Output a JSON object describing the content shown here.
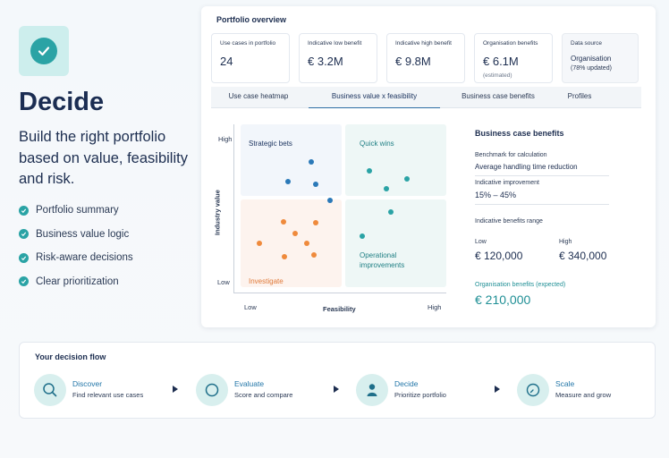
{
  "intro": {
    "title": "Decide",
    "subtitle": "Build the right portfolio based on value, feasibility and risk.",
    "features": [
      "Portfolio summary",
      "Business value logic",
      "Risk-aware decisions",
      "Clear prioritization"
    ],
    "accent": "#2aa3a5"
  },
  "panel": {
    "title": "Portfolio overview",
    "kpis": [
      {
        "label": "Use cases in portfolio",
        "value": "24"
      },
      {
        "label": "Indicative low benefit",
        "value": "€ 3.2M"
      },
      {
        "label": "Indicative high benefit",
        "value": "€ 9.8M"
      },
      {
        "label": "Organisation benefits",
        "value": "€ 6.1M",
        "note": "(estimated)"
      },
      {
        "label": "Data source",
        "value": "Organisation",
        "note": "(78% updated)"
      }
    ],
    "tabs": [
      "Use case heatmap",
      "Business value x feasibility",
      "Business case benefits",
      "Profiles"
    ],
    "active_tab": "Business value x feasibility"
  },
  "matrix": {
    "y_title": "Industry value",
    "y_high": "High",
    "y_low": "Low",
    "x_title": "Feasibility",
    "x_low": "Low",
    "x_high": "High",
    "quadrants": {
      "top_left": "Strategic bets",
      "top_right": "Quick wins",
      "bottom_left": "Investigate",
      "bottom_right": "Operational improvements"
    },
    "colors": {
      "blue": "#2b79b8",
      "teal": "#2aa3a5",
      "orange": "#ef8a3c",
      "investigate": "#e07a3a"
    }
  },
  "benefits": {
    "title": "Business case benefits",
    "benchmark_label": "Benchmark for calculation",
    "benchmark_value": "Average handling time reduction",
    "improvement_label": "Indicative improvement",
    "improvement_value": "15% – 45%",
    "range_label": "Indicative benefits range",
    "low_label": "Low",
    "low_value": "€ 120,000",
    "high_label": "High",
    "high_value": "€ 340,000",
    "expected_label": "Organisation benefits (expected)",
    "expected_value": "€ 210,000"
  },
  "flow": {
    "title": "Your decision flow",
    "steps": [
      {
        "title": "Discover",
        "desc": "Find relevant use cases",
        "icon": "search-icon"
      },
      {
        "title": "Evaluate",
        "desc": "Score and compare",
        "icon": "circle-icon"
      },
      {
        "title": "Decide",
        "desc": "Prioritize portfolio",
        "icon": "person-icon"
      },
      {
        "title": "Scale",
        "desc": "Measure and grow",
        "icon": "gauge-icon"
      }
    ]
  }
}
